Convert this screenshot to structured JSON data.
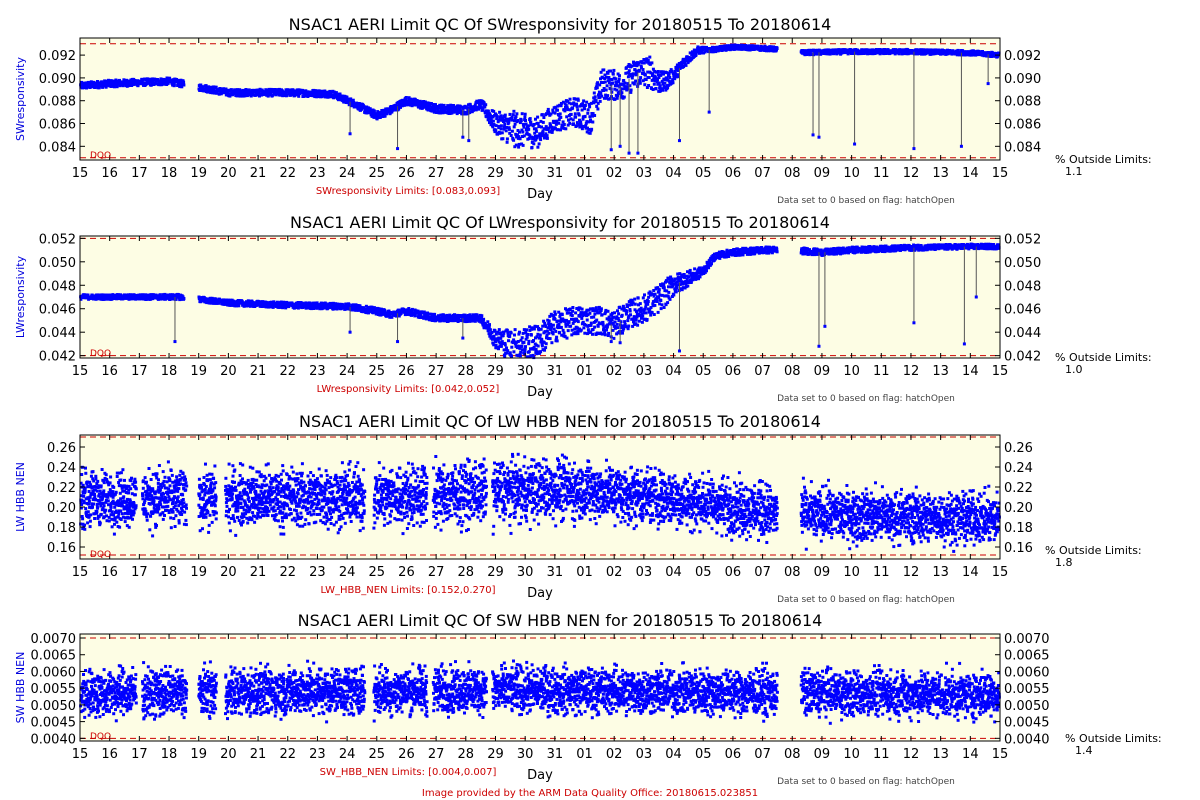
{
  "colors": {
    "plot_bg": "#fdfde4",
    "data": "#0000ff",
    "limit_line": "#cc0000",
    "axis": "#000000"
  },
  "x_axis_ticks": [
    "15",
    "16",
    "17",
    "18",
    "19",
    "20",
    "21",
    "22",
    "23",
    "24",
    "25",
    "26",
    "27",
    "28",
    "29",
    "30",
    "31",
    "01",
    "02",
    "03",
    "04",
    "05",
    "06",
    "07",
    "08",
    "09",
    "10",
    "11",
    "12",
    "13",
    "14",
    "15"
  ],
  "x_axis_label": "Day",
  "footer": "Image provided by the ARM Data Quality Office: 20180615.023851",
  "chart_data": [
    {
      "type": "scatter",
      "title": "NSAC1 AERI Limit QC Of SWresponsivity for 20180515 To 20180614",
      "ylabel": "SWresponsivity",
      "xlabel": "Day",
      "xlim": [
        0,
        31
      ],
      "ylim": [
        0.0828,
        0.0935
      ],
      "yticks": [
        "0.084",
        "0.086",
        "0.088",
        "0.090",
        "0.092"
      ],
      "ytick_values": [
        0.084,
        0.086,
        0.088,
        0.09,
        0.092
      ],
      "limits": [
        0.083,
        0.093
      ],
      "limits_text": "SWresponsivity Limits: [0.083,0.093]",
      "dqo_label": "DQO",
      "note": "Data set to 0 based on flag: hatchOpen",
      "pct_label": "% Outside Limits:",
      "pct_value": "1.1",
      "grid": false,
      "trend": [
        [
          0,
          0.0893
        ],
        [
          1,
          0.0895
        ],
        [
          2,
          0.0896
        ],
        [
          3,
          0.0897
        ],
        [
          3.4,
          0.0895
        ],
        [
          5,
          0.0887
        ],
        [
          7,
          0.0887
        ],
        [
          8.5,
          0.0886
        ],
        [
          9.2,
          0.0878
        ],
        [
          10,
          0.0867
        ],
        [
          10.5,
          0.0872
        ],
        [
          11,
          0.088
        ],
        [
          12,
          0.0873
        ],
        [
          13,
          0.0872
        ],
        [
          13.5,
          0.0877
        ],
        [
          14,
          0.086
        ],
        [
          14.6,
          0.0855
        ],
        [
          15.4,
          0.0852
        ],
        [
          16,
          0.0865
        ],
        [
          16.7,
          0.087
        ],
        [
          17.2,
          0.0865
        ],
        [
          17.6,
          0.0895
        ],
        [
          18.2,
          0.0893
        ],
        [
          18.8,
          0.0905
        ],
        [
          19.2,
          0.0905
        ],
        [
          19.6,
          0.0895
        ],
        [
          20,
          0.0902
        ],
        [
          20.4,
          0.0915
        ],
        [
          20.8,
          0.0924
        ],
        [
          21.4,
          0.0925
        ],
        [
          22,
          0.0927
        ],
        [
          23,
          0.0926
        ],
        [
          23.5,
          0.0925
        ],
        [
          24,
          0.0922
        ],
        [
          26,
          0.0923
        ],
        [
          28,
          0.0923
        ],
        [
          30,
          0.0922
        ],
        [
          31,
          0.092
        ]
      ],
      "noise": [
        [
          0,
          0.0003
        ],
        [
          8.6,
          0.0003
        ],
        [
          13.5,
          0.0004
        ],
        [
          14.6,
          0.0016
        ],
        [
          16,
          0.0012
        ],
        [
          17.3,
          0.0014
        ],
        [
          18.2,
          0.0013
        ],
        [
          19.2,
          0.0014
        ],
        [
          20,
          0.0006
        ],
        [
          20.6,
          0.0004
        ],
        [
          21.2,
          0.0002
        ],
        [
          31,
          0.0002
        ]
      ],
      "gaps": [
        [
          3.5,
          4.0
        ],
        [
          23.5,
          24.3
        ]
      ],
      "spikes": [
        [
          9.1,
          0.0851
        ],
        [
          10.7,
          0.0838
        ],
        [
          12.9,
          0.0848
        ],
        [
          13.1,
          0.0845
        ],
        [
          17.9,
          0.0837
        ],
        [
          18.2,
          0.084
        ],
        [
          18.5,
          0.0834
        ],
        [
          18.8,
          0.0834
        ],
        [
          20.2,
          0.0845
        ],
        [
          21.2,
          0.087
        ],
        [
          24.7,
          0.085
        ],
        [
          24.9,
          0.0848
        ],
        [
          26.1,
          0.0842
        ],
        [
          28.1,
          0.0838
        ],
        [
          29.7,
          0.084
        ],
        [
          30.6,
          0.0895
        ]
      ]
    },
    {
      "type": "scatter",
      "title": "NSAC1 AERI Limit QC Of LWresponsivity for 20180515 To 20180614",
      "ylabel": "LWresponsivity",
      "xlabel": "Day",
      "xlim": [
        0,
        31
      ],
      "ylim": [
        0.0418,
        0.0522
      ],
      "yticks": [
        "0.042",
        "0.044",
        "0.046",
        "0.048",
        "0.050",
        "0.052"
      ],
      "ytick_values": [
        0.042,
        0.044,
        0.046,
        0.048,
        0.05,
        0.052
      ],
      "limits": [
        0.042,
        0.052
      ],
      "limits_text": "LWresponsivity Limits: [0.042,0.052]",
      "dqo_label": "DQO",
      "note": "Data set to 0 based on flag: hatchOpen",
      "pct_label": "% Outside Limits:",
      "pct_value": "1.0",
      "grid": false,
      "trend": [
        [
          0,
          0.047
        ],
        [
          3.4,
          0.047
        ],
        [
          5,
          0.0465
        ],
        [
          7,
          0.0463
        ],
        [
          9,
          0.0462
        ],
        [
          10,
          0.0458
        ],
        [
          10.5,
          0.0455
        ],
        [
          11,
          0.0458
        ],
        [
          12,
          0.0452
        ],
        [
          13.5,
          0.0452
        ],
        [
          14,
          0.0435
        ],
        [
          14.6,
          0.0428
        ],
        [
          15.4,
          0.0432
        ],
        [
          16,
          0.0445
        ],
        [
          16.8,
          0.045
        ],
        [
          17.5,
          0.045
        ],
        [
          18,
          0.0446
        ],
        [
          18.5,
          0.0455
        ],
        [
          19,
          0.046
        ],
        [
          19.5,
          0.0468
        ],
        [
          20,
          0.048
        ],
        [
          21,
          0.0492
        ],
        [
          21.4,
          0.0505
        ],
        [
          22,
          0.0508
        ],
        [
          23,
          0.051
        ],
        [
          24,
          0.051
        ],
        [
          25,
          0.0508
        ],
        [
          26,
          0.051
        ],
        [
          28,
          0.0512
        ],
        [
          30,
          0.0513
        ],
        [
          31,
          0.0513
        ]
      ],
      "noise": [
        [
          0,
          0.0002
        ],
        [
          13.5,
          0.0003
        ],
        [
          14.6,
          0.0015
        ],
        [
          17,
          0.0012
        ],
        [
          18.5,
          0.0012
        ],
        [
          19.6,
          0.0012
        ],
        [
          20.4,
          0.0007
        ],
        [
          21.2,
          0.0003
        ],
        [
          31,
          0.0002
        ]
      ],
      "gaps": [
        [
          3.5,
          4.0
        ],
        [
          23.5,
          24.3
        ]
      ],
      "spikes": [
        [
          3.2,
          0.0432
        ],
        [
          9.1,
          0.044
        ],
        [
          10.7,
          0.0432
        ],
        [
          12.9,
          0.0435
        ],
        [
          17.9,
          0.0432
        ],
        [
          18.2,
          0.0431
        ],
        [
          20.2,
          0.0424
        ],
        [
          24.9,
          0.0428
        ],
        [
          25.1,
          0.0445
        ],
        [
          28.1,
          0.0448
        ],
        [
          29.8,
          0.043
        ],
        [
          30.2,
          0.047
        ]
      ]
    },
    {
      "type": "scatter",
      "title": "NSAC1 AERI Limit QC Of LW HBB NEN for 20180515 To 20180614",
      "ylabel": "LW HBB NEN",
      "xlabel": "Day",
      "xlim": [
        0,
        31
      ],
      "ylim": [
        0.148,
        0.272
      ],
      "yticks": [
        "0.16",
        "0.18",
        "0.20",
        "0.22",
        "0.24",
        "0.26"
      ],
      "ytick_values": [
        0.16,
        0.18,
        0.2,
        0.22,
        0.24,
        0.26
      ],
      "limits": [
        0.152,
        0.27
      ],
      "limits_text": "LW_HBB_NEN Limits: [0.152,0.270]",
      "dqo_label": "DQO",
      "note": "Data set to 0 based on flag: hatchOpen",
      "pct_label": "% Outside Limits:",
      "pct_value": "1.8",
      "grid": false,
      "trend": [
        [
          0,
          0.208
        ],
        [
          10,
          0.21
        ],
        [
          14,
          0.215
        ],
        [
          16,
          0.218
        ],
        [
          18,
          0.214
        ],
        [
          20,
          0.208
        ],
        [
          22,
          0.2
        ],
        [
          24,
          0.193
        ],
        [
          26,
          0.192
        ],
        [
          28,
          0.19
        ],
        [
          31,
          0.188
        ]
      ],
      "noise": [
        [
          0,
          0.025
        ],
        [
          14,
          0.028
        ],
        [
          20,
          0.025
        ],
        [
          31,
          0.022
        ]
      ],
      "gaps": [
        [
          1.9,
          2.1
        ],
        [
          3.6,
          4.0
        ],
        [
          4.6,
          4.9
        ],
        [
          9.6,
          9.9
        ],
        [
          11.7,
          11.9
        ],
        [
          13.7,
          13.9
        ],
        [
          23.5,
          24.3
        ]
      ],
      "spikes": []
    },
    {
      "type": "scatter",
      "title": "NSAC1 AERI Limit QC Of SW HBB NEN for 20180515 To 20180614",
      "ylabel": "SW HBB NEN",
      "xlabel": "Day",
      "xlim": [
        0,
        31
      ],
      "ylim": [
        0.00392,
        0.00712
      ],
      "yticks": [
        "0.0040",
        "0.0045",
        "0.0050",
        "0.0055",
        "0.0060",
        "0.0065",
        "0.0070"
      ],
      "ytick_values": [
        0.004,
        0.0045,
        0.005,
        0.0055,
        0.006,
        0.0065,
        0.007
      ],
      "limits": [
        0.004,
        0.007
      ],
      "limits_text": "SW_HBB_NEN Limits: [0.004,0.007]",
      "dqo_label": "DQO",
      "note": "Data set to 0 based on flag: hatchOpen",
      "pct_label": "% Outside Limits:",
      "pct_value": "1.4",
      "grid": false,
      "trend": [
        [
          0,
          0.00535
        ],
        [
          14,
          0.00545
        ],
        [
          31,
          0.0053
        ]
      ],
      "noise": [
        [
          0,
          0.00065
        ],
        [
          31,
          0.0006
        ]
      ],
      "gaps": [
        [
          1.9,
          2.1
        ],
        [
          3.6,
          4.0
        ],
        [
          4.6,
          4.9
        ],
        [
          9.6,
          9.9
        ],
        [
          11.7,
          11.9
        ],
        [
          13.7,
          13.9
        ],
        [
          23.5,
          24.3
        ]
      ],
      "spikes": []
    }
  ]
}
